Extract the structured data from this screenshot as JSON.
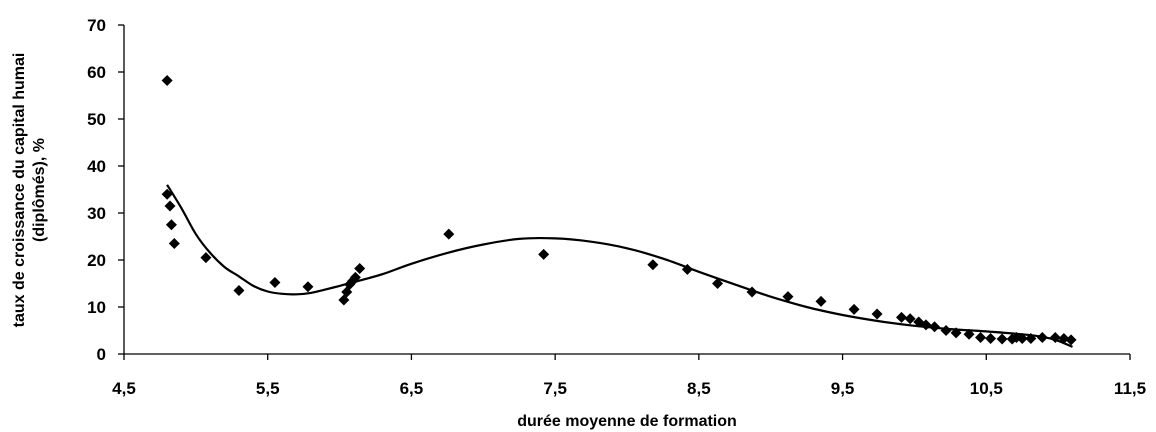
{
  "chart_data": {
    "type": "scatter",
    "title": "",
    "xlabel": "durée moyenne de formation",
    "ylabel_lines": [
      "taux de croissance du capital humai",
      "(diplômés), %"
    ],
    "xlim": [
      4.5,
      11.5
    ],
    "ylim": [
      0,
      70
    ],
    "x_ticks": [
      "4,5",
      "5,5",
      "6,5",
      "7,5",
      "8,5",
      "9,5",
      "10,5",
      "11,5"
    ],
    "x_tick_values": [
      4.5,
      5.5,
      6.5,
      7.5,
      8.5,
      9.5,
      10.5,
      11.5
    ],
    "y_ticks": [
      "0",
      "10",
      "20",
      "30",
      "40",
      "50",
      "60",
      "70"
    ],
    "y_tick_values": [
      0,
      10,
      20,
      30,
      40,
      50,
      60,
      70
    ],
    "grid": false,
    "legend": "none",
    "marker": "diamond",
    "color": "#000000",
    "series": [
      {
        "points": [
          [
            4.8,
            58.2
          ],
          [
            4.8,
            34.0
          ],
          [
            4.82,
            31.5
          ],
          [
            4.83,
            27.5
          ],
          [
            4.85,
            23.5
          ],
          [
            5.07,
            20.5
          ],
          [
            5.3,
            13.5
          ],
          [
            5.55,
            15.2
          ],
          [
            5.78,
            14.3
          ],
          [
            6.03,
            11.5
          ],
          [
            6.05,
            13.2
          ],
          [
            6.07,
            14.8
          ],
          [
            6.09,
            15.5
          ],
          [
            6.11,
            16.3
          ],
          [
            6.14,
            18.2
          ],
          [
            6.76,
            25.5
          ],
          [
            7.42,
            21.2
          ],
          [
            8.18,
            19.0
          ],
          [
            8.42,
            18.0
          ],
          [
            8.63,
            15.0
          ],
          [
            8.87,
            13.2
          ],
          [
            9.12,
            12.2
          ],
          [
            9.35,
            11.2
          ],
          [
            9.58,
            9.5
          ],
          [
            9.74,
            8.5
          ],
          [
            9.91,
            7.8
          ],
          [
            9.97,
            7.5
          ],
          [
            10.03,
            6.8
          ],
          [
            10.08,
            6.2
          ],
          [
            10.14,
            5.8
          ],
          [
            10.22,
            5.0
          ],
          [
            10.29,
            4.5
          ],
          [
            10.38,
            4.2
          ],
          [
            10.46,
            3.5
          ],
          [
            10.53,
            3.3
          ],
          [
            10.61,
            3.2
          ],
          [
            10.68,
            3.2
          ],
          [
            10.71,
            3.5
          ],
          [
            10.75,
            3.3
          ],
          [
            10.81,
            3.3
          ],
          [
            10.89,
            3.5
          ],
          [
            10.98,
            3.5
          ],
          [
            11.04,
            3.3
          ],
          [
            11.09,
            3.0
          ]
        ]
      }
    ],
    "trendline": {
      "type": "polynomial",
      "x": [
        4.8,
        4.9,
        5.0,
        5.1,
        5.2,
        5.3,
        5.4,
        5.5,
        5.6,
        5.7,
        5.8,
        5.9,
        6.0,
        6.1,
        6.3,
        6.5,
        6.75,
        7.0,
        7.25,
        7.5,
        7.75,
        8.0,
        8.25,
        8.5,
        8.75,
        9.0,
        9.25,
        9.5,
        9.75,
        10.0,
        10.25,
        10.5,
        10.75,
        10.9,
        11.0,
        11.1
      ],
      "y": [
        36.0,
        31.0,
        25.5,
        21.5,
        18.5,
        16.5,
        14.5,
        13.3,
        12.8,
        12.7,
        13.0,
        13.7,
        14.5,
        15.3,
        17.0,
        19.2,
        21.5,
        23.3,
        24.5,
        24.6,
        23.9,
        22.5,
        20.3,
        17.5,
        14.8,
        12.2,
        10.0,
        8.3,
        7.0,
        6.0,
        5.3,
        4.8,
        4.2,
        3.6,
        2.8,
        1.5
      ]
    }
  }
}
